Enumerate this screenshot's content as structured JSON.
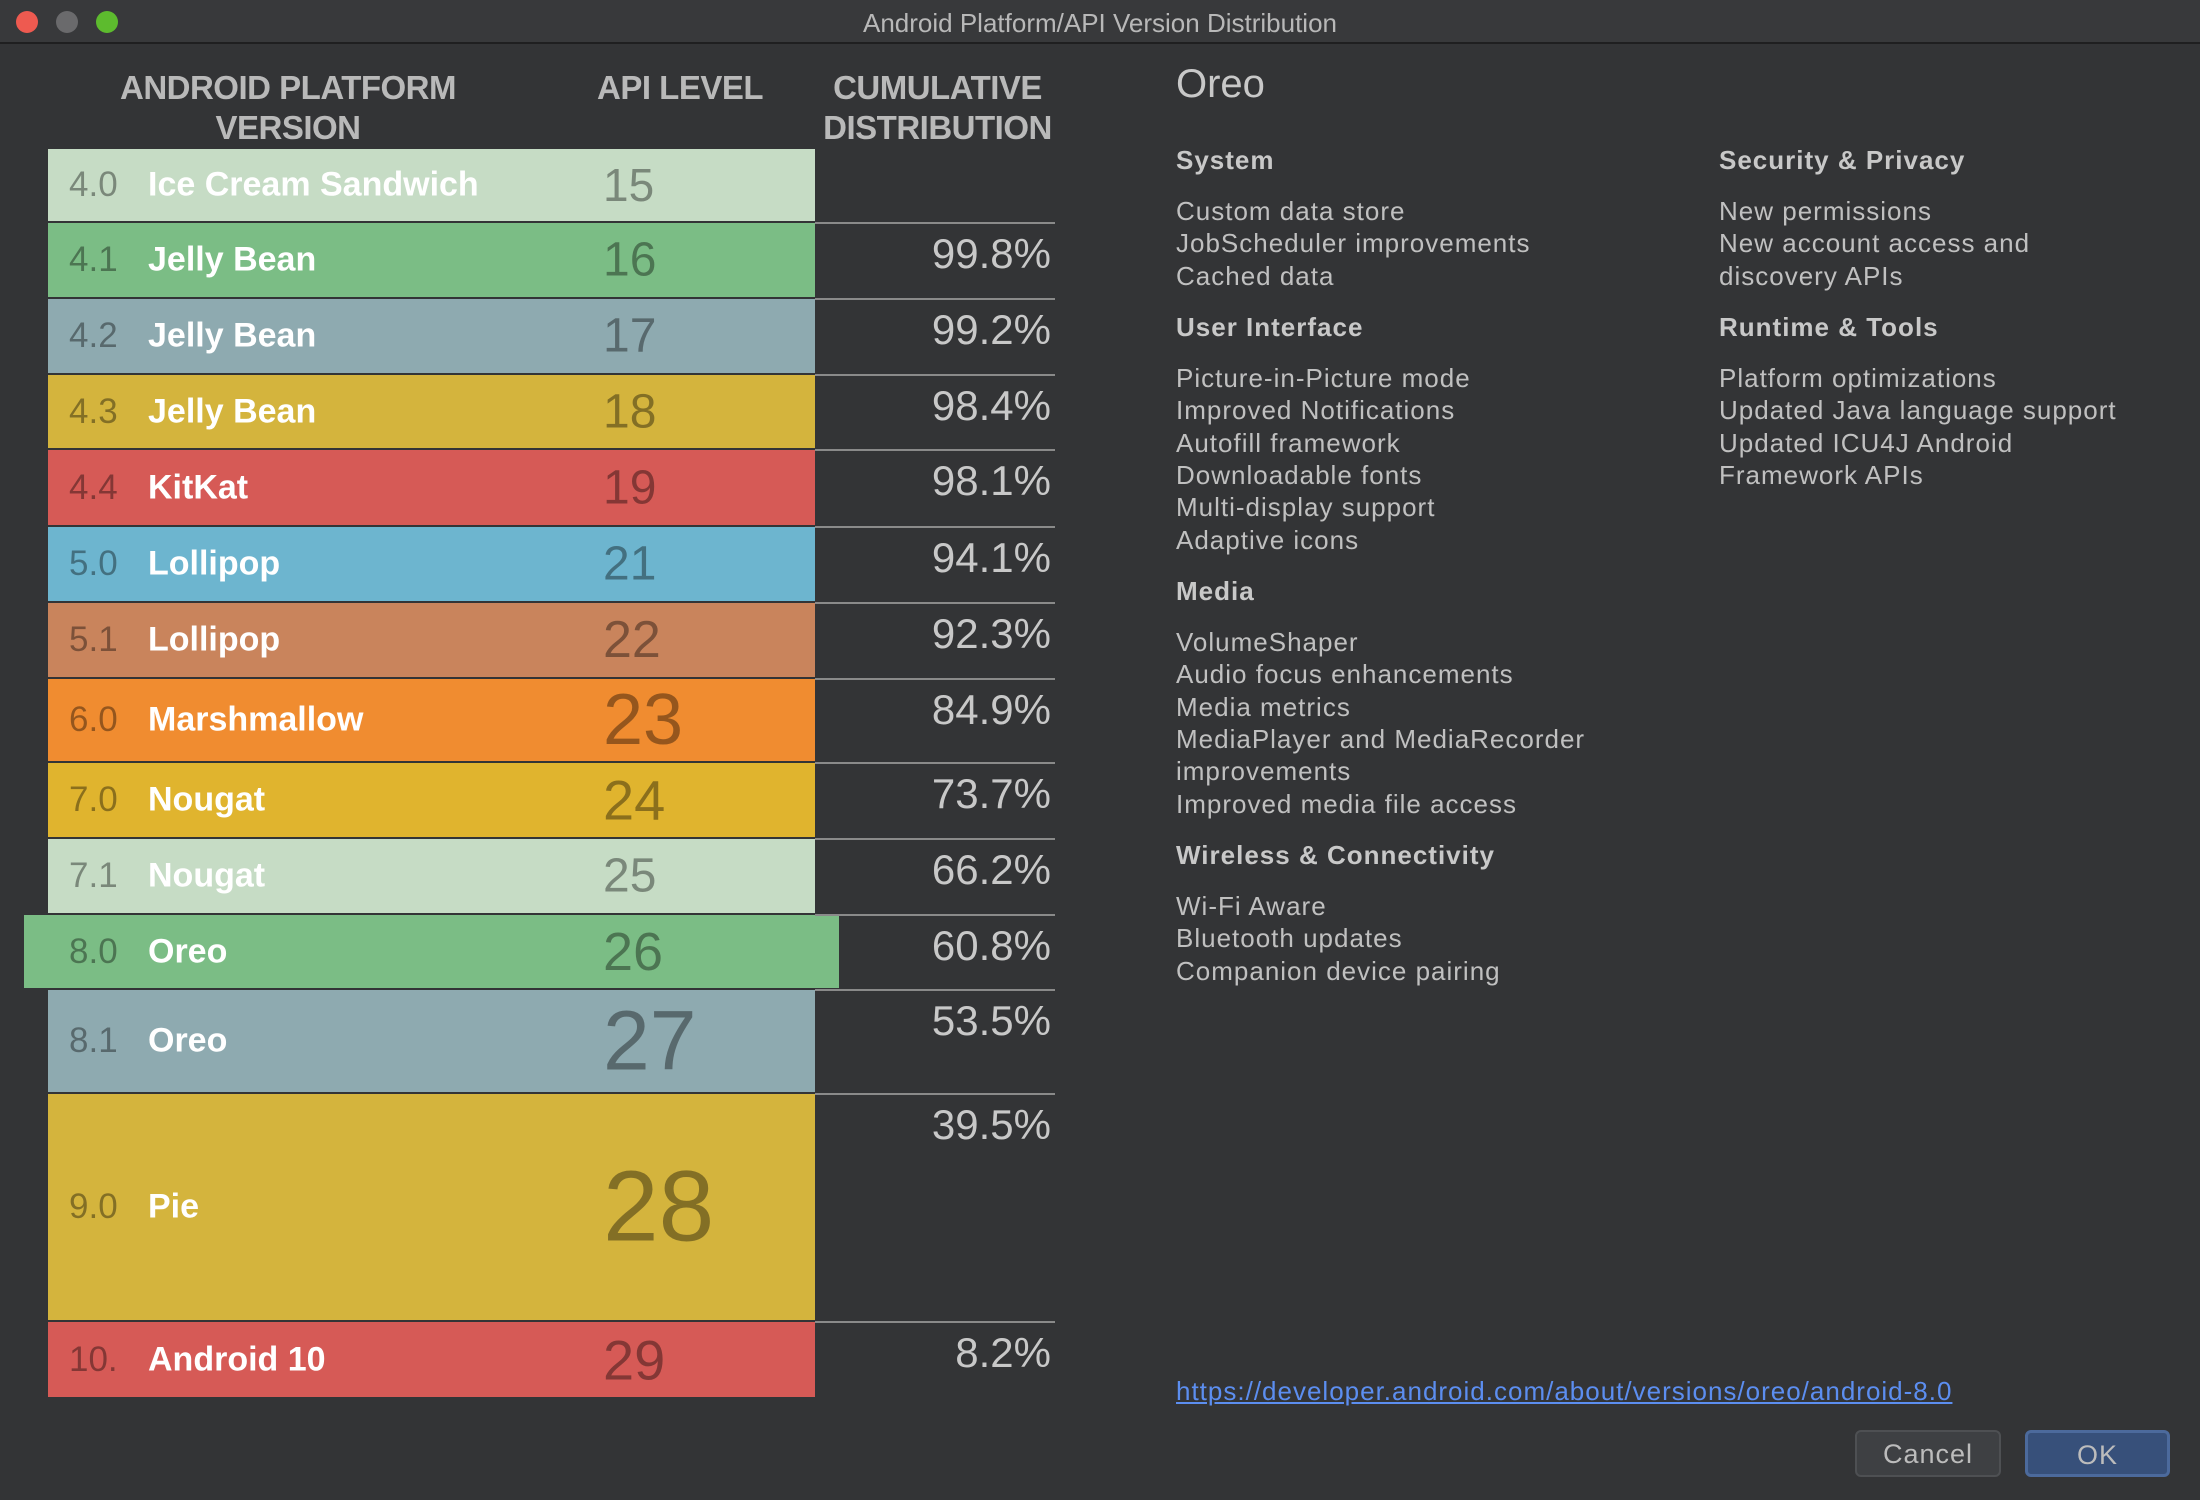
{
  "window": {
    "title": "Android Platform/API Version Distribution",
    "controls": {
      "close": "#ee5a50",
      "minimize": "#6a6a6c",
      "maximize": "#5dbb2e"
    }
  },
  "table": {
    "headers": {
      "version": "ANDROID PLATFORM VERSION",
      "api": "API LEVEL",
      "cumulative": "CUMULATIVE DISTRIBUTION"
    },
    "rows": [
      {
        "version": "4.0",
        "name": "Ice Cream Sandwich",
        "api": "15",
        "cumulative": "",
        "color": "#c6dcc5"
      },
      {
        "version": "4.1",
        "name": "Jelly Bean",
        "api": "16",
        "cumulative": "99.8%",
        "color": "#7bbd85"
      },
      {
        "version": "4.2",
        "name": "Jelly Bean",
        "api": "17",
        "cumulative": "99.2%",
        "color": "#8eaab0"
      },
      {
        "version": "4.3",
        "name": "Jelly Bean",
        "api": "18",
        "cumulative": "98.4%",
        "color": "#d4b43d"
      },
      {
        "version": "4.4",
        "name": "KitKat",
        "api": "19",
        "cumulative": "98.1%",
        "color": "#d65a56"
      },
      {
        "version": "5.0",
        "name": "Lollipop",
        "api": "21",
        "cumulative": "94.1%",
        "color": "#6db5cf"
      },
      {
        "version": "5.1",
        "name": "Lollipop",
        "api": "22",
        "cumulative": "92.3%",
        "color": "#c9845c"
      },
      {
        "version": "6.0",
        "name": "Marshmallow",
        "api": "23",
        "cumulative": "84.9%",
        "color": "#f08c30"
      },
      {
        "version": "7.0",
        "name": "Nougat",
        "api": "24",
        "cumulative": "73.7%",
        "color": "#e0b42e"
      },
      {
        "version": "7.1",
        "name": "Nougat",
        "api": "25",
        "cumulative": "66.2%",
        "color": "#c6dcc5"
      },
      {
        "version": "8.0",
        "name": "Oreo",
        "api": "26",
        "cumulative": "60.8%",
        "color": "#7bbd85",
        "selected": true
      },
      {
        "version": "8.1",
        "name": "Oreo",
        "api": "27",
        "cumulative": "53.5%",
        "color": "#8eaab0"
      },
      {
        "version": "9.0",
        "name": "Pie",
        "api": "28",
        "cumulative": "39.5%",
        "color": "#d4b43d"
      },
      {
        "version": "10.",
        "name": "Android 10",
        "api": "29",
        "cumulative": "8.2%",
        "color": "#d65a56"
      }
    ]
  },
  "details": {
    "title": "Oreo",
    "system": {
      "heading": "System",
      "items": [
        "Custom data store",
        "JobScheduler improvements",
        "Cached data"
      ]
    },
    "ui": {
      "heading": "User Interface",
      "items": [
        "Picture-in-Picture mode",
        "Improved Notifications",
        "Autofill framework",
        "Downloadable fonts",
        "Multi-display support",
        "Adaptive icons"
      ]
    },
    "media": {
      "heading": "Media",
      "items": [
        "VolumeShaper",
        "Audio focus enhancements",
        "Media metrics",
        "MediaPlayer and MediaRecorder",
        "improvements",
        "Improved media file access"
      ]
    },
    "wireless": {
      "heading": "Wireless & Connectivity",
      "items": [
        "Wi-Fi Aware",
        "Bluetooth updates",
        "Companion device pairing"
      ]
    },
    "security": {
      "heading": "Security & Privacy",
      "items": [
        "New permissions",
        "New account access and",
        "discovery APIs"
      ]
    },
    "runtime": {
      "heading": "Runtime & Tools",
      "items": [
        "Platform optimizations",
        "Updated Java language support",
        "Updated ICU4J Android",
        "Framework APIs"
      ]
    },
    "link": "https://developer.android.com/about/versions/oreo/android-8.0"
  },
  "buttons": {
    "cancel": "Cancel",
    "ok": "OK"
  }
}
